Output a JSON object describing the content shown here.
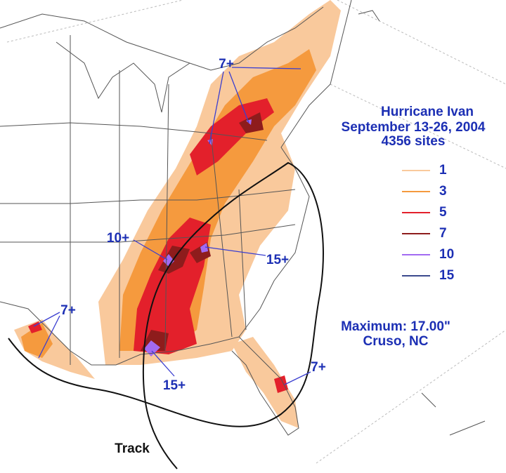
{
  "title": "Hurricane Ivan",
  "dates": "September 13-26, 2004",
  "sites": "4356 sites",
  "legend": [
    {
      "label": 1,
      "color": "#f9c99c"
    },
    {
      "label": 3,
      "color": "#f59a3e"
    },
    {
      "label": 5,
      "color": "#e3202b"
    },
    {
      "label": 7,
      "color": "#8e1c1c"
    },
    {
      "label": 10,
      "color": "#a26af2"
    },
    {
      "label": 15,
      "color": "#3b4a8e"
    }
  ],
  "maximum": "Maximum: 17.00\"",
  "location": "Cruso, NC",
  "annotations": [
    "7+",
    "10+",
    "15+",
    "7+",
    "15+",
    "7+"
  ],
  "track_label": "Track"
}
